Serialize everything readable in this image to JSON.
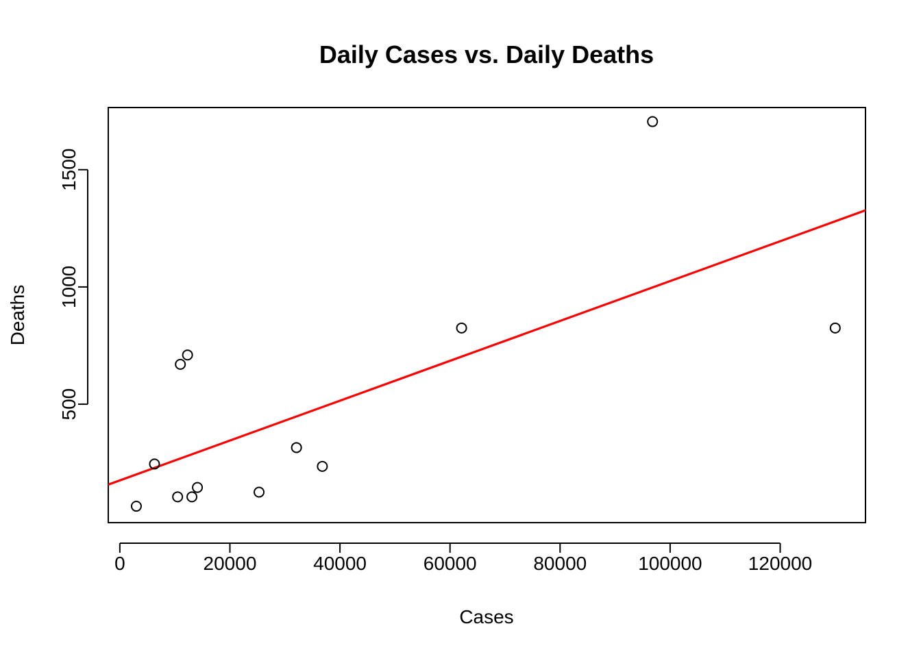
{
  "chart_data": {
    "type": "scatter",
    "title": "Daily Cases vs. Daily Deaths",
    "xlabel": "Cases",
    "ylabel": "Deaths",
    "xlim": [
      -2100,
      135500
    ],
    "ylim": [
      -5,
      1765
    ],
    "x_ticks": [
      0,
      20000,
      40000,
      60000,
      80000,
      100000,
      120000
    ],
    "y_ticks": [
      500,
      1000,
      1500
    ],
    "grid": false,
    "legend": "none",
    "points": [
      {
        "x": 3000,
        "y": 65
      },
      {
        "x": 6300,
        "y": 245
      },
      {
        "x": 10500,
        "y": 105
      },
      {
        "x": 11000,
        "y": 670
      },
      {
        "x": 12300,
        "y": 710
      },
      {
        "x": 13100,
        "y": 105
      },
      {
        "x": 14100,
        "y": 145
      },
      {
        "x": 25300,
        "y": 125
      },
      {
        "x": 32100,
        "y": 315
      },
      {
        "x": 36800,
        "y": 235
      },
      {
        "x": 62100,
        "y": 825
      },
      {
        "x": 96800,
        "y": 1705
      },
      {
        "x": 130000,
        "y": 825
      }
    ],
    "regression_line": {
      "intercept": 175,
      "slope": 0.0085,
      "color": "#ff0000"
    },
    "colors": {
      "points": "#000000",
      "line": "#ff0000",
      "frame": "#000000"
    }
  }
}
